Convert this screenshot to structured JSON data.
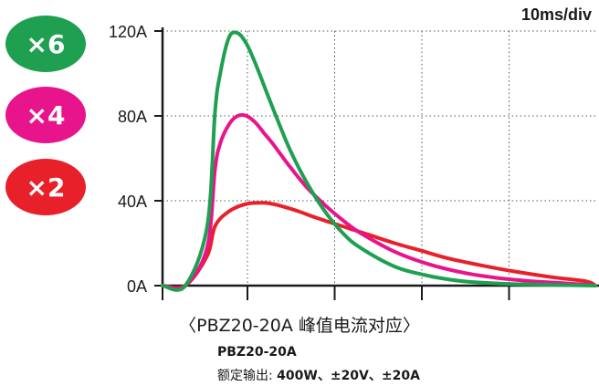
{
  "chart_data": {
    "type": "line",
    "scale_label": "10ms/div",
    "title": "〈PBZ20-20A 峰值电流对应〉",
    "xlabel": "",
    "ylabel": "",
    "ylim": [
      0,
      120
    ],
    "yticks": [
      "0A",
      "40A",
      "80A",
      "120A"
    ],
    "ytick_values": [
      0,
      40,
      80,
      120
    ],
    "x_unit": "ms",
    "xlim": [
      -10,
      50
    ],
    "grid": true,
    "grid_style": "dotted",
    "series": [
      {
        "name": "×6",
        "color": "#1fa050",
        "x": [
          -10,
          0,
          2.5,
          3.4,
          4,
          5,
          6,
          7,
          8,
          10,
          12,
          14,
          16,
          18,
          20,
          24,
          28,
          32,
          36,
          40,
          44,
          50
        ],
        "y": [
          0,
          0,
          28,
          82,
          100,
          117,
          119,
          114,
          105,
          84,
          64,
          48,
          35,
          25,
          18,
          9,
          4.5,
          2,
          1,
          0.5,
          0.2,
          0
        ]
      },
      {
        "name": "×4",
        "color": "#e8148c",
        "x": [
          -10,
          0,
          2.5,
          3.4,
          4,
          5,
          6,
          7,
          8,
          9,
          10,
          12,
          14,
          16,
          18,
          20,
          24,
          28,
          32,
          36,
          40,
          44,
          50
        ],
        "y": [
          0,
          0,
          18,
          55,
          67,
          76,
          80,
          80,
          77,
          72,
          67,
          56,
          46,
          38,
          31,
          25,
          16,
          10,
          6,
          3.5,
          2,
          1,
          0
        ]
      },
      {
        "name": "×2",
        "color": "#e8202a",
        "x": [
          -10,
          0,
          2.5,
          3.4,
          5,
          7,
          9,
          10,
          11,
          13,
          15,
          18,
          21,
          24,
          27,
          30,
          34,
          38,
          42,
          46,
          50
        ],
        "y": [
          0,
          0,
          14,
          28,
          35,
          38.5,
          39,
          38.5,
          37.5,
          35,
          32,
          28,
          24,
          20,
          16.5,
          13,
          9.5,
          6.5,
          4,
          2,
          0
        ]
      }
    ]
  },
  "badges": [
    {
      "label": "×6",
      "color": "#1fa050"
    },
    {
      "label": "×4",
      "color": "#e8148c"
    },
    {
      "label": "×2",
      "color": "#e8202a"
    }
  ],
  "model": "PBZ20-20A",
  "spec_prefix": "额定输出: ",
  "spec_values": "400W、±20V、±20A"
}
